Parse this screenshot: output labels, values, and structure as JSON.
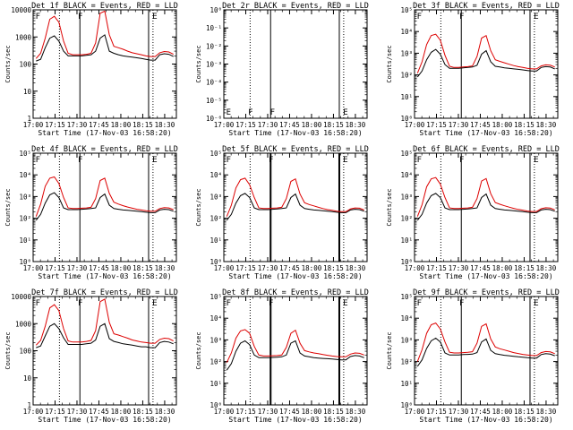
{
  "chart_data": [
    {
      "type": "line",
      "title": "Det 1f BLACK = Events, RED = LLD",
      "ylabel": "Counts/sec",
      "xlabel": "Start Time (17-Nov-03 16:58:20)",
      "y_scale": "log",
      "ylim": [
        1,
        10000
      ],
      "ytick_labels": [
        "1",
        "10",
        "100",
        "1000",
        "10000"
      ],
      "xtick_labels": [
        "17:00",
        "17:15",
        "17:30",
        "17:45",
        "18:00",
        "18:15",
        "18:30"
      ],
      "markers": [
        "F",
        "F",
        "E"
      ],
      "series": [
        {
          "name": "Events",
          "color": "#000000",
          "values": [
            130,
            150,
            400,
            900,
            1100,
            700,
            300,
            200,
            200,
            200,
            200,
            210,
            220,
            300,
            900,
            1200,
            300,
            250,
            220,
            200,
            190,
            180,
            170,
            160,
            150,
            140,
            140,
            220,
            240,
            230,
            190
          ]
        },
        {
          "name": "LLD",
          "color": "#dd0000",
          "values": [
            160,
            250,
            900,
            4500,
            5800,
            3500,
            700,
            250,
            220,
            220,
            220,
            230,
            250,
            600,
            7500,
            9000,
            1200,
            450,
            400,
            350,
            300,
            260,
            240,
            220,
            200,
            190,
            190,
            260,
            290,
            280,
            230
          ]
        }
      ]
    },
    {
      "type": "line",
      "title": "Det 2r BLACK = Events, RED = LLD",
      "ylabel": "Counts/sec",
      "xlabel": "Start Time (17-Nov-03 16:58:20)",
      "y_scale": "log",
      "ylim": [
        1e-06,
        1
      ],
      "ytick_labels": [
        "10⁻⁶",
        "10⁻⁵",
        "10⁻⁴",
        "10⁻³",
        "10⁻²",
        "10⁻¹",
        "10⁰"
      ],
      "xtick_labels": [
        "17:00",
        "17:15",
        "17:30",
        "17:45",
        "18:00",
        "18:15",
        "18:30"
      ],
      "markers": [
        "E",
        "F",
        "F",
        "E"
      ],
      "series": []
    },
    {
      "type": "line",
      "title": "Det 3f BLACK = Events, RED = LLD",
      "ylabel": "Counts/sec",
      "xlabel": "Start Time (17-Nov-03 16:58:20)",
      "y_scale": "log",
      "ylim": [
        1,
        100000
      ],
      "ytick_labels": [
        "10⁰",
        "10¹",
        "10²",
        "10³",
        "10⁴",
        "10⁵"
      ],
      "xtick_labels": [
        "17:00",
        "17:15",
        "17:30",
        "17:45",
        "18:00",
        "18:15",
        "18:30"
      ],
      "markers": [
        "F",
        "F",
        "E"
      ],
      "series": [
        {
          "name": "Events",
          "color": "#000000",
          "values": [
            80,
            150,
            500,
            1100,
            1500,
            900,
            300,
            200,
            200,
            200,
            210,
            220,
            230,
            280,
            900,
            1300,
            400,
            250,
            230,
            210,
            200,
            190,
            180,
            170,
            160,
            150,
            150,
            220,
            240,
            230,
            190
          ]
        },
        {
          "name": "LLD",
          "color": "#dd0000",
          "values": [
            120,
            400,
            2500,
            6500,
            7500,
            4000,
            800,
            250,
            220,
            220,
            230,
            240,
            260,
            700,
            5000,
            6500,
            1300,
            500,
            420,
            360,
            310,
            270,
            240,
            220,
            200,
            190,
            190,
            260,
            290,
            280,
            230
          ]
        }
      ]
    },
    {
      "type": "line",
      "title": "Det 4f BLACK = Events, RED = LLD",
      "ylabel": "Counts/sec",
      "xlabel": "Start Time (17-Nov-03 16:58:20)",
      "y_scale": "log",
      "ylim": [
        1,
        100000
      ],
      "ytick_labels": [
        "10⁰",
        "10¹",
        "10²",
        "10³",
        "10⁴",
        "10⁵"
      ],
      "xtick_labels": [
        "17:00",
        "17:15",
        "17:30",
        "17:45",
        "18:00",
        "18:15",
        "18:30"
      ],
      "markers": [
        "F",
        "F",
        "E"
      ],
      "series": [
        {
          "name": "Events",
          "color": "#000000",
          "values": [
            80,
            150,
            500,
            1200,
            1500,
            900,
            300,
            250,
            250,
            250,
            260,
            270,
            280,
            300,
            900,
            1300,
            400,
            280,
            260,
            240,
            230,
            220,
            210,
            200,
            190,
            180,
            180,
            240,
            260,
            250,
            210
          ]
        },
        {
          "name": "LLD",
          "color": "#dd0000",
          "values": [
            120,
            450,
            3000,
            7000,
            8000,
            4000,
            900,
            300,
            280,
            280,
            290,
            300,
            320,
            800,
            5500,
            7000,
            1400,
            550,
            450,
            380,
            330,
            290,
            260,
            240,
            220,
            210,
            210,
            280,
            310,
            300,
            250
          ]
        }
      ]
    },
    {
      "type": "line",
      "title": "Det 5f BLACK = Events, RED = LLD",
      "ylabel": "Counts/sec",
      "xlabel": "Start Time (17-Nov-03 16:58:20)",
      "y_scale": "log",
      "ylim": [
        1,
        100000
      ],
      "ytick_labels": [
        "10⁰",
        "10¹",
        "10²",
        "10³",
        "10⁴",
        "10⁵"
      ],
      "xtick_labels": [
        "17:00",
        "17:15",
        "17:30",
        "17:45",
        "18:00",
        "18:15",
        "18:30"
      ],
      "markers": [
        "F",
        "F",
        "E"
      ],
      "series": [
        {
          "name": "Events",
          "color": "#000000",
          "values": [
            80,
            150,
            500,
            1100,
            1400,
            900,
            300,
            250,
            250,
            250,
            260,
            270,
            280,
            300,
            900,
            1300,
            400,
            280,
            260,
            240,
            230,
            220,
            210,
            200,
            190,
            180,
            180,
            240,
            260,
            250,
            210
          ]
        },
        {
          "name": "LLD",
          "color": "#dd0000",
          "values": [
            120,
            400,
            2500,
            6000,
            7000,
            3500,
            900,
            300,
            280,
            280,
            290,
            300,
            320,
            800,
            5000,
            6500,
            1300,
            520,
            430,
            370,
            320,
            280,
            250,
            230,
            210,
            200,
            200,
            270,
            300,
            290,
            240
          ]
        }
      ]
    },
    {
      "type": "line",
      "title": "Det 6f BLACK = Events, RED = LLD",
      "ylabel": "Counts/sec",
      "xlabel": "Start Time (17-Nov-03 16:58:20)",
      "y_scale": "log",
      "ylim": [
        1,
        100000
      ],
      "ytick_labels": [
        "10⁰",
        "10¹",
        "10²",
        "10³",
        "10⁴",
        "10⁵"
      ],
      "xtick_labels": [
        "17:00",
        "17:15",
        "17:30",
        "17:45",
        "18:00",
        "18:15",
        "18:30"
      ],
      "markers": [
        "F",
        "F",
        "E"
      ],
      "series": [
        {
          "name": "Events",
          "color": "#000000",
          "values": [
            80,
            150,
            500,
            1100,
            1400,
            900,
            300,
            250,
            250,
            250,
            260,
            270,
            280,
            300,
            900,
            1300,
            400,
            280,
            260,
            240,
            230,
            220,
            210,
            200,
            190,
            180,
            180,
            240,
            260,
            250,
            210
          ]
        },
        {
          "name": "LLD",
          "color": "#dd0000",
          "values": [
            120,
            420,
            2800,
            6500,
            7500,
            3800,
            900,
            300,
            280,
            280,
            290,
            300,
            320,
            800,
            5200,
            6800,
            1350,
            530,
            440,
            375,
            325,
            285,
            255,
            235,
            215,
            205,
            205,
            275,
            305,
            295,
            245
          ]
        }
      ]
    },
    {
      "type": "line",
      "title": "Det 7f BLACK = Events, RED = LLD",
      "ylabel": "Counts/sec",
      "xlabel": "Start Time (17-Nov-03 16:58:20)",
      "y_scale": "log",
      "ylim": [
        1,
        10000
      ],
      "ytick_labels": [
        "1",
        "10",
        "100",
        "1000",
        "10000"
      ],
      "xtick_labels": [
        "17:00",
        "17:15",
        "17:30",
        "17:45",
        "18:00",
        "18:15",
        "18:30"
      ],
      "markers": [
        "F",
        "F",
        "E"
      ],
      "series": [
        {
          "name": "Events",
          "color": "#000000",
          "values": [
            130,
            150,
            350,
            800,
            1000,
            650,
            300,
            170,
            170,
            170,
            170,
            180,
            190,
            250,
            800,
            1000,
            280,
            220,
            200,
            180,
            170,
            160,
            150,
            140,
            140,
            130,
            130,
            200,
            220,
            210,
            180
          ]
        },
        {
          "name": "LLD",
          "color": "#dd0000",
          "values": [
            160,
            240,
            800,
            3800,
            5000,
            3000,
            650,
            230,
            210,
            210,
            210,
            220,
            240,
            550,
            6500,
            8000,
            1100,
            420,
            380,
            330,
            290,
            250,
            230,
            210,
            200,
            190,
            190,
            260,
            290,
            280,
            230
          ]
        }
      ]
    },
    {
      "type": "line",
      "title": "Det 8f BLACK = Events, RED = LLD",
      "ylabel": "Counts/sec",
      "xlabel": "Start Time (17-Nov-03 16:58:20)",
      "y_scale": "log",
      "ylim": [
        1,
        100000
      ],
      "ytick_labels": [
        "10⁰",
        "10¹",
        "10²",
        "10³",
        "10⁴",
        "10⁵"
      ],
      "xtick_labels": [
        "17:00",
        "17:15",
        "17:30",
        "17:45",
        "18:00",
        "18:15",
        "18:30"
      ],
      "markers": [
        "F",
        "F",
        "E"
      ],
      "series": [
        {
          "name": "Events",
          "color": "#000000",
          "values": [
            40,
            80,
            300,
            700,
            900,
            600,
            200,
            150,
            150,
            150,
            155,
            160,
            165,
            200,
            700,
            900,
            250,
            180,
            165,
            150,
            145,
            140,
            135,
            130,
            125,
            120,
            120,
            170,
            190,
            180,
            150
          ]
        },
        {
          "name": "LLD",
          "color": "#dd0000",
          "values": [
            90,
            250,
            1200,
            2600,
            3000,
            2000,
            500,
            200,
            180,
            180,
            185,
            190,
            200,
            450,
            2000,
            2800,
            700,
            320,
            280,
            250,
            230,
            210,
            195,
            180,
            170,
            165,
            165,
            220,
            250,
            240,
            200
          ]
        }
      ]
    },
    {
      "type": "line",
      "title": "Det 9f BLACK = Events, RED = LLD",
      "ylabel": "Counts/sec",
      "xlabel": "Start Time (17-Nov-03 16:58:20)",
      "y_scale": "log",
      "ylim": [
        1,
        100000
      ],
      "ytick_labels": [
        "10⁰",
        "10¹",
        "10²",
        "10³",
        "10⁴",
        "10⁵"
      ],
      "xtick_labels": [
        "17:00",
        "17:15",
        "17:30",
        "17:45",
        "18:00",
        "18:15",
        "18:30"
      ],
      "markers": [
        "F",
        "F",
        "E"
      ],
      "series": [
        {
          "name": "Events",
          "color": "#000000",
          "values": [
            60,
            120,
            400,
            900,
            1200,
            800,
            250,
            200,
            200,
            200,
            210,
            215,
            220,
            260,
            800,
            1100,
            330,
            230,
            210,
            195,
            185,
            175,
            165,
            160,
            150,
            145,
            145,
            210,
            230,
            220,
            185
          ]
        },
        {
          "name": "LLD",
          "color": "#dd0000",
          "values": [
            100,
            350,
            2000,
            5000,
            6000,
            3200,
            800,
            270,
            250,
            250,
            260,
            270,
            285,
            700,
            4200,
            5500,
            1100,
            470,
            390,
            340,
            300,
            260,
            235,
            215,
            200,
            190,
            190,
            260,
            290,
            280,
            230
          ]
        }
      ]
    }
  ]
}
